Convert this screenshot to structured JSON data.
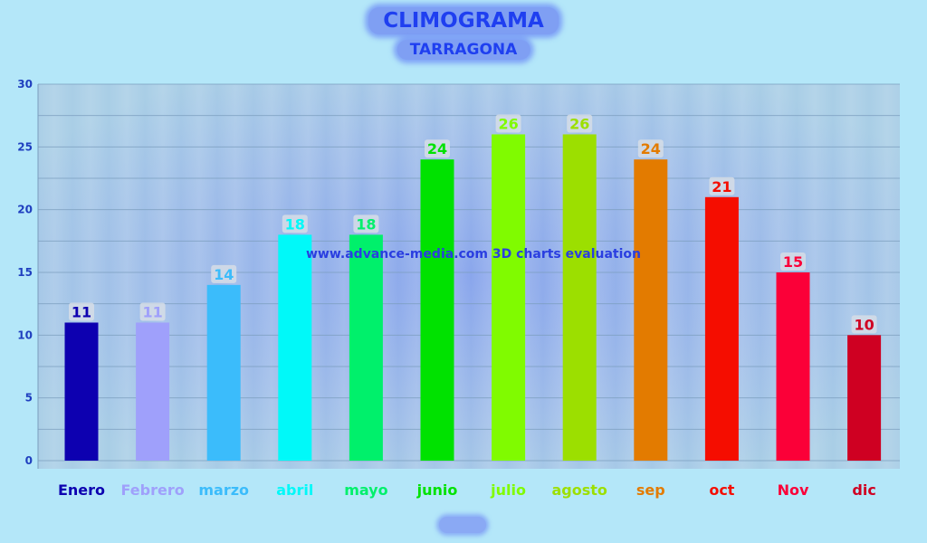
{
  "chart_data": {
    "type": "bar",
    "title": "CLIMOGRAMA",
    "subtitle": "TARRAGONA",
    "watermark": "www.advance-media.com 3D charts evaluation",
    "categories": [
      "Enero",
      "Febrero",
      "marzo",
      "abril",
      "mayo",
      "junio",
      "julio",
      "agosto",
      "sep",
      "oct",
      "Nov",
      "dic"
    ],
    "values": [
      11,
      11,
      14,
      18,
      18,
      24,
      26,
      26,
      24,
      21,
      15,
      10
    ],
    "colors": [
      "#0d00b0",
      "#9fa0fb",
      "#3bbcfb",
      "#00f9f9",
      "#00f06b",
      "#00e200",
      "#80fb00",
      "#9cdf00",
      "#e37b00",
      "#f50d00",
      "#fb0038",
      "#cf0022"
    ],
    "ylim": [
      0,
      30
    ],
    "yticks": [
      0,
      5,
      10,
      15,
      20,
      25,
      30
    ],
    "grid": true,
    "legend": "none",
    "xlabel": "",
    "ylabel": ""
  }
}
